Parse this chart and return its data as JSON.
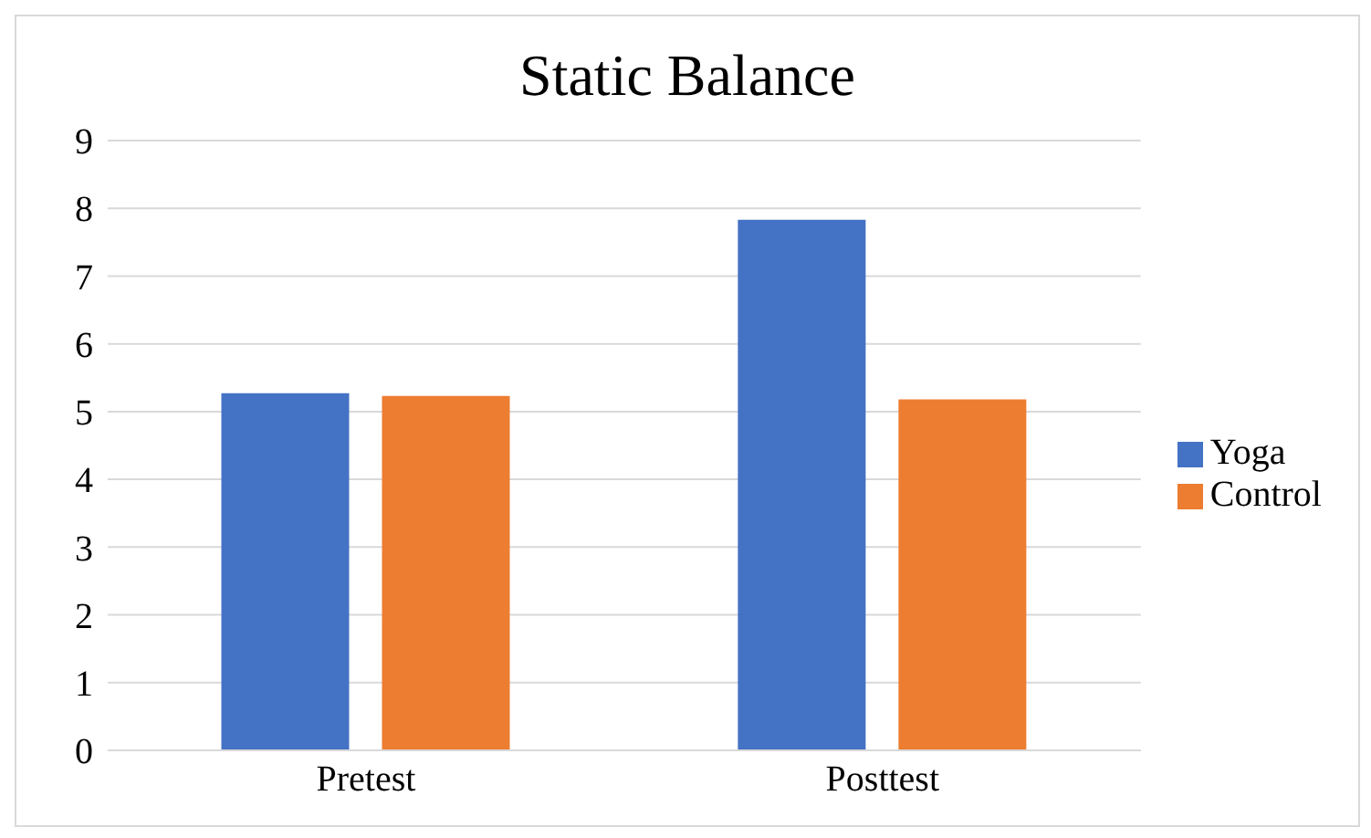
{
  "chart_data": {
    "type": "bar",
    "title": "Static Balance",
    "categories": [
      "Pretest",
      "Posttest"
    ],
    "series": [
      {
        "name": "Yoga",
        "color": "#4472c4",
        "values": [
          5.27,
          7.83
        ]
      },
      {
        "name": "Control",
        "color": "#ed7d31",
        "values": [
          5.23,
          5.18
        ]
      }
    ],
    "ylim": [
      0,
      9
    ],
    "yticks": [
      0,
      1,
      2,
      3,
      4,
      5,
      6,
      7,
      8,
      9
    ],
    "grid": "y",
    "legend": "right"
  }
}
